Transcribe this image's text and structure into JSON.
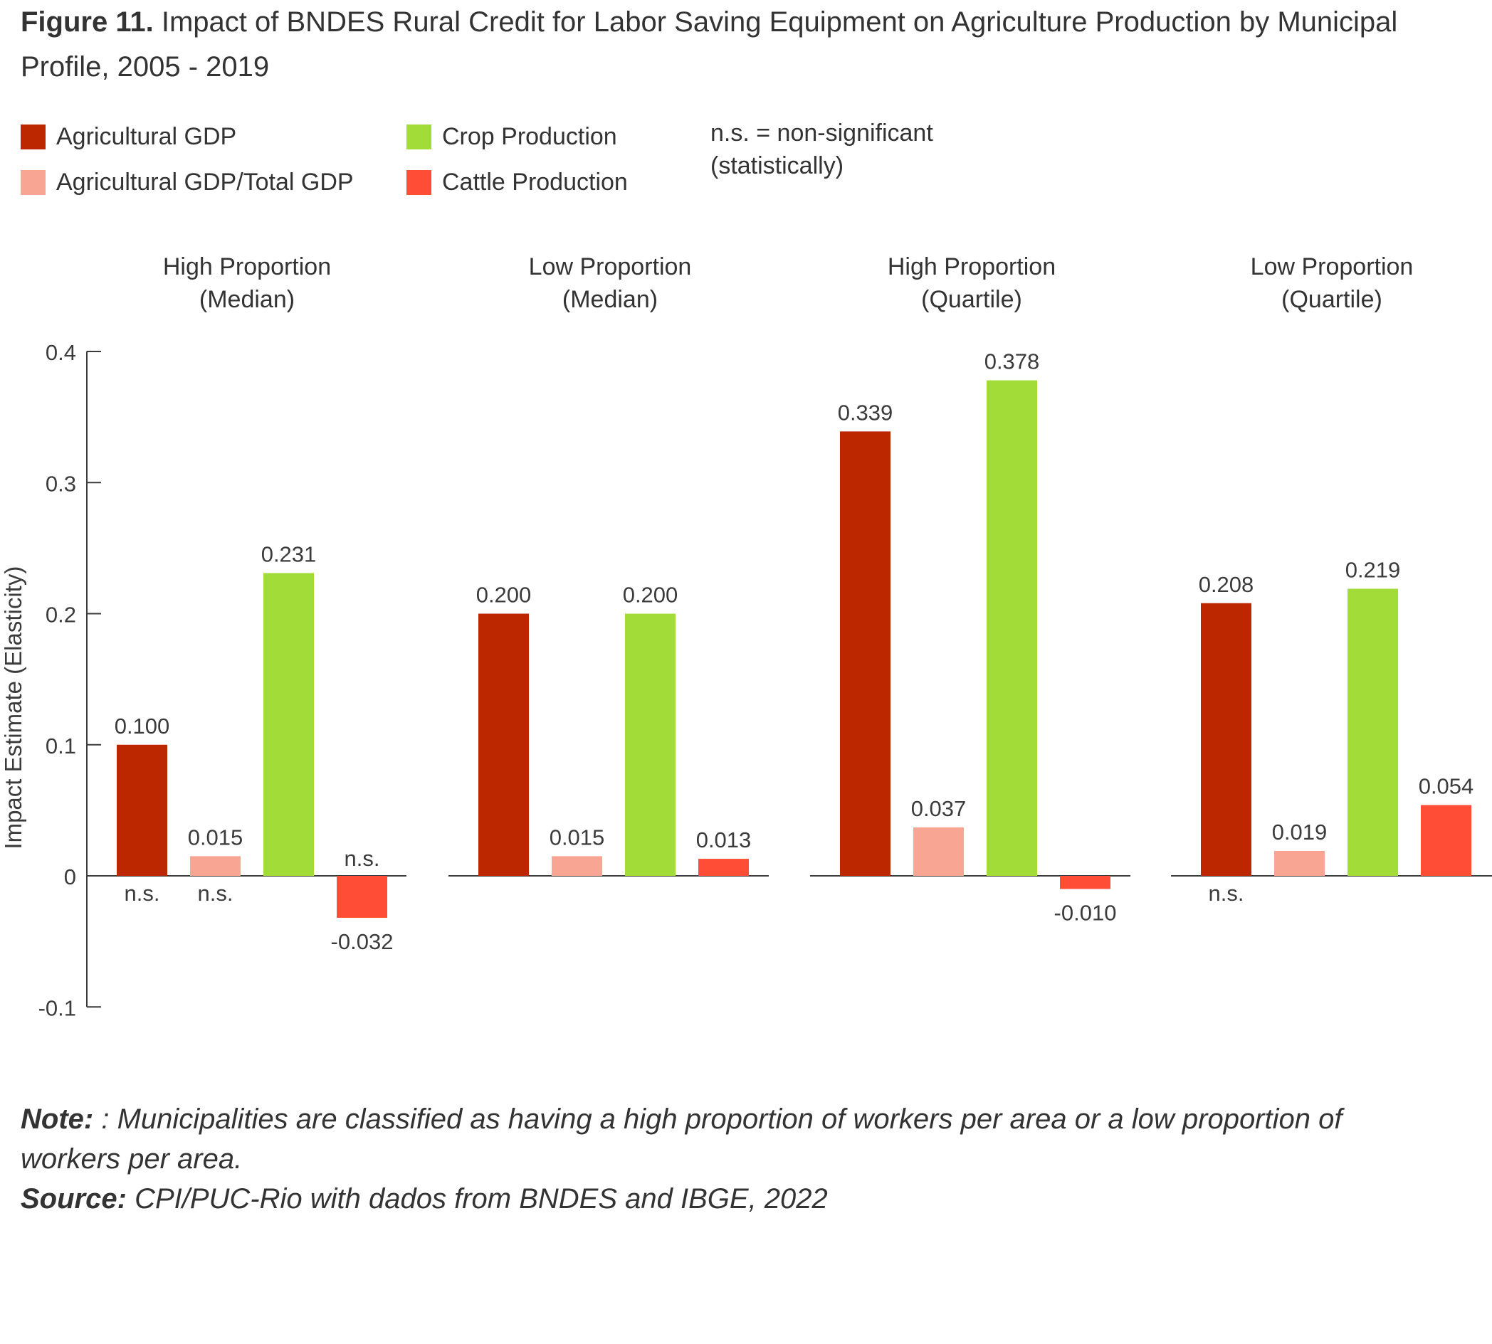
{
  "title": {
    "prefix": "Figure 11.",
    "text": "Impact of BNDES Rural Credit for Labor Saving Equipment on Agriculture Production by Municipal Profile, 2005 - 2019"
  },
  "legend": [
    {
      "label": "Agricultural GDP",
      "color": "#bd2700"
    },
    {
      "label": "Agricultural GDP/Total GDP",
      "color": "#f9a593"
    },
    {
      "label": "Crop Production",
      "color": "#a2dc38"
    },
    {
      "label": "Cattle Production",
      "color": "#ff4e35"
    }
  ],
  "ns_note": {
    "line1": "n.s. = non-significant",
    "line2": "(statistically)"
  },
  "notes": {
    "note_label": "Note:",
    "note_text": ": Municipalities are classified as having a high proportion of workers per area or a low proportion of workers per area.",
    "source_label": "Source:",
    "source_text": "CPI/PUC-Rio with dados from BNDES and IBGE, 2022"
  },
  "chart_data": {
    "type": "bar",
    "ylabel": "Impact Estimate (Elasticity)",
    "ylim": [
      -0.1,
      0.4
    ],
    "yticks": [
      {
        "v": 0.4,
        "label": "0.4"
      },
      {
        "v": 0.3,
        "label": "0.3"
      },
      {
        "v": 0.2,
        "label": "0.2"
      },
      {
        "v": 0.1,
        "label": "0.1"
      },
      {
        "v": 0,
        "label": "0"
      },
      {
        "v": -0.1,
        "label": "-0.1"
      }
    ],
    "panels": [
      {
        "title_line1": "High Proportion",
        "title_line2": "(Median)",
        "bars": [
          {
            "series": "Agricultural GDP",
            "value": 0.1,
            "label": "0.100",
            "ns": "n.s."
          },
          {
            "series": "Agricultural GDP/Total GDP",
            "value": 0.015,
            "label": "0.015",
            "ns": "n.s."
          },
          {
            "series": "Crop Production",
            "value": 0.231,
            "label": "0.231",
            "ns": ""
          },
          {
            "series": "Cattle Production",
            "value": -0.032,
            "label": "-0.032",
            "ns": "n.s."
          }
        ]
      },
      {
        "title_line1": "Low Proportion",
        "title_line2": "(Median)",
        "bars": [
          {
            "series": "Agricultural GDP",
            "value": 0.2,
            "label": "0.200",
            "ns": ""
          },
          {
            "series": "Agricultural GDP/Total GDP",
            "value": 0.015,
            "label": "0.015",
            "ns": ""
          },
          {
            "series": "Crop Production",
            "value": 0.2,
            "label": "0.200",
            "ns": ""
          },
          {
            "series": "Cattle Production",
            "value": 0.013,
            "label": "0.013",
            "ns": ""
          }
        ]
      },
      {
        "title_line1": "High Proportion",
        "title_line2": "(Quartile)",
        "bars": [
          {
            "series": "Agricultural GDP",
            "value": 0.339,
            "label": "0.339",
            "ns": ""
          },
          {
            "series": "Agricultural GDP/Total GDP",
            "value": 0.037,
            "label": "0.037",
            "ns": ""
          },
          {
            "series": "Crop Production",
            "value": 0.378,
            "label": "0.378",
            "ns": ""
          },
          {
            "series": "Cattle Production",
            "value": -0.01,
            "label": "-0.010",
            "ns": ""
          }
        ]
      },
      {
        "title_line1": "Low Proportion",
        "title_line2": "(Quartile)",
        "bars": [
          {
            "series": "Agricultural GDP",
            "value": 0.208,
            "label": "0.208",
            "ns": "n.s."
          },
          {
            "series": "Agricultural GDP/Total GDP",
            "value": 0.019,
            "label": "0.019",
            "ns": ""
          },
          {
            "series": "Crop Production",
            "value": 0.219,
            "label": "0.219",
            "ns": ""
          },
          {
            "series": "Cattle Production",
            "value": 0.054,
            "label": "0.054",
            "ns": ""
          }
        ]
      }
    ]
  }
}
